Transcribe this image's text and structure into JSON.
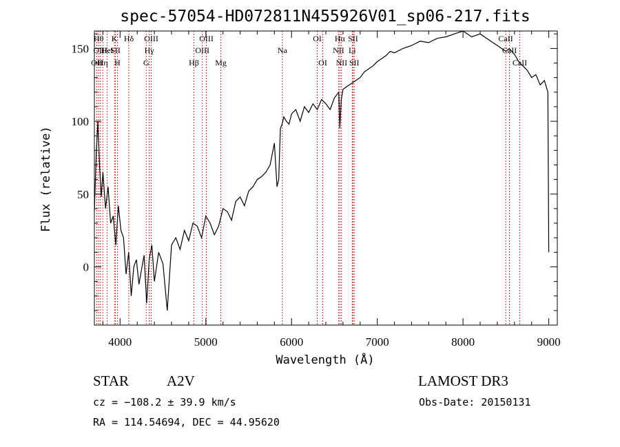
{
  "chart_data": {
    "type": "line",
    "title": "spec-57054-HD072811N455926V01_sp06-217.fits",
    "xlabel": "Wavelength (Å)",
    "ylabel": "Flux (relative)",
    "xlim": [
      3700,
      9100
    ],
    "ylim": [
      -40,
      162
    ],
    "xticks": [
      4000,
      5000,
      6000,
      7000,
      8000,
      9000
    ],
    "yticks": [
      0,
      50,
      100,
      150
    ],
    "series": [
      {
        "x": [
          3700,
          3720,
          3740,
          3760,
          3780,
          3800,
          3830,
          3860,
          3890,
          3920,
          3950,
          3980,
          4010,
          4040,
          4070,
          4100,
          4130,
          4160,
          4190,
          4220,
          4250,
          4280,
          4310,
          4340,
          4370,
          4400,
          4450,
          4500,
          4550,
          4600,
          4650,
          4700,
          4750,
          4800,
          4850,
          4900,
          4950,
          5000,
          5050,
          5100,
          5150,
          5200,
          5250,
          5300,
          5350,
          5400,
          5450,
          5500,
          5550,
          5600,
          5650,
          5700,
          5750,
          5800,
          5830,
          5850,
          5870,
          5890,
          5910,
          5940,
          5970,
          6000,
          6050,
          6100,
          6150,
          6200,
          6250,
          6300,
          6350,
          6400,
          6450,
          6500,
          6550,
          6563,
          6580,
          6600,
          6650,
          6700,
          6750,
          6800,
          6850,
          6900,
          6950,
          7000,
          7050,
          7100,
          7150,
          7200,
          7300,
          7400,
          7500,
          7600,
          7700,
          7800,
          7900,
          8000,
          8100,
          8200,
          8300,
          8400,
          8500,
          8540,
          8600,
          8660,
          8700,
          8750,
          8800,
          8850,
          8900,
          8950,
          8990,
          9000
        ],
        "y": [
          38,
          75,
          100,
          70,
          48,
          65,
          40,
          55,
          30,
          35,
          15,
          42,
          25,
          20,
          -5,
          10,
          -20,
          0,
          5,
          -12,
          -2,
          8,
          -25,
          5,
          15,
          -10,
          10,
          2,
          -30,
          15,
          20,
          12,
          25,
          18,
          30,
          28,
          20,
          35,
          30,
          22,
          28,
          40,
          38,
          32,
          45,
          48,
          42,
          52,
          55,
          60,
          62,
          65,
          70,
          85,
          55,
          60,
          95,
          98,
          103,
          100,
          98,
          105,
          108,
          100,
          110,
          106,
          112,
          108,
          115,
          112,
          108,
          116,
          120,
          95,
          115,
          122,
          124,
          126,
          128,
          130,
          134,
          136,
          138,
          141,
          143,
          145,
          148,
          147,
          150,
          152,
          155,
          154,
          157,
          158,
          160,
          162,
          158,
          160,
          156,
          152,
          148,
          150,
          146,
          140,
          138,
          135,
          130,
          132,
          125,
          128,
          120,
          10
        ]
      }
    ],
    "spectral_lines": [
      {
        "wavelength": 3727,
        "label": "OII",
        "row": 3
      },
      {
        "wavelength": 3750,
        "label": "Hθ",
        "row": 1
      },
      {
        "wavelength": 3770,
        "label": "OIII",
        "row": 2
      },
      {
        "wavelength": 3798,
        "label": "Hη",
        "row": 3
      },
      {
        "wavelength": 3850,
        "label": "HeI",
        "row": 2
      },
      {
        "wavelength": 3934,
        "label": "K",
        "row": 1
      },
      {
        "wavelength": 3945,
        "label": "SII",
        "row": 2
      },
      {
        "wavelength": 3968,
        "label": "H",
        "row": 3
      },
      {
        "wavelength": 4102,
        "label": "Hδ",
        "row": 1
      },
      {
        "wavelength": 4304,
        "label": "G",
        "row": 3
      },
      {
        "wavelength": 4340,
        "label": "Hγ",
        "row": 2
      },
      {
        "wavelength": 4363,
        "label": "OIII",
        "row": 1
      },
      {
        "wavelength": 4861,
        "label": "Hβ",
        "row": 3
      },
      {
        "wavelength": 4959,
        "label": "OIII",
        "row": 2
      },
      {
        "wavelength": 5007,
        "label": "OIII",
        "row": 1
      },
      {
        "wavelength": 5175,
        "label": "Mg",
        "row": 3
      },
      {
        "wavelength": 5893,
        "label": "Na",
        "row": 2
      },
      {
        "wavelength": 6300,
        "label": "OI",
        "row": 1
      },
      {
        "wavelength": 6364,
        "label": "OI",
        "row": 3
      },
      {
        "wavelength": 6548,
        "label": "NII",
        "row": 2
      },
      {
        "wavelength": 6563,
        "label": "Hα",
        "row": 1
      },
      {
        "wavelength": 6583,
        "label": "NII",
        "row": 3
      },
      {
        "wavelength": 6708,
        "label": "Li",
        "row": 2
      },
      {
        "wavelength": 6717,
        "label": "SII",
        "row": 1
      },
      {
        "wavelength": 6731,
        "label": "SII",
        "row": 3
      },
      {
        "wavelength": 8498,
        "label": "CaII",
        "row": 1
      },
      {
        "wavelength": 8542,
        "label": "CaII",
        "row": 2
      },
      {
        "wavelength": 8662,
        "label": "CaII",
        "row": 3
      }
    ]
  },
  "info": {
    "class": "STAR",
    "subclass": "A2V",
    "survey": "LAMOST DR3",
    "cz": "cz = −108.2 ± 39.9 km/s",
    "obs_date": "Obs-Date: 20150131",
    "radec": "RA = 114.54694, DEC =  44.95620"
  },
  "colors": {
    "spectrum": "#000000",
    "line_marker": "#cc0000"
  }
}
